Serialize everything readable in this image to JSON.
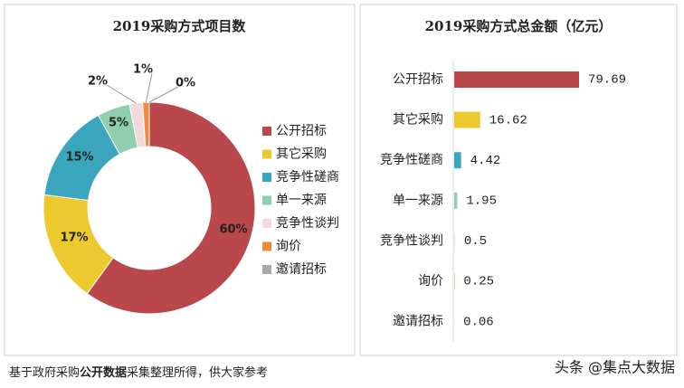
{
  "chart_data": [
    {
      "type": "donut",
      "title": "2019采购方式项目数",
      "categories": [
        "公开招标",
        "其它采购",
        "竞争性磋商",
        "单一来源",
        "竞争性谈判",
        "询价",
        "邀请招标"
      ],
      "values": [
        60,
        17,
        15,
        5,
        2,
        1,
        0
      ],
      "value_labels": [
        "60%",
        "17%",
        "15%",
        "5%",
        "2%",
        "1%",
        "0%"
      ],
      "colors": [
        "#b9474b",
        "#ecc92e",
        "#3aa6bd",
        "#8fcfae",
        "#f2d9de",
        "#f28a3c",
        "#a8a8a8"
      ],
      "legend": "right"
    },
    {
      "type": "hbar",
      "title": "2019采购方式总金额（亿元）",
      "categories": [
        "公开招标",
        "其它采购",
        "竞争性磋商",
        "单一来源",
        "竞争性谈判",
        "询价",
        "邀请招标"
      ],
      "values": [
        79.69,
        16.62,
        4.42,
        1.95,
        0.5,
        0.25,
        0.06
      ],
      "colors": [
        "#b9474b",
        "#ecc92e",
        "#3aa6bd",
        "#8fcfae",
        "#f2d9de",
        "#f28a3c",
        "#a8a8a8"
      ]
    }
  ],
  "footer": {
    "parts": [
      "基于政府采购",
      "公开数据",
      "采集整理所得，供大家参考"
    ]
  },
  "watermark": "头条 @集点大数据"
}
